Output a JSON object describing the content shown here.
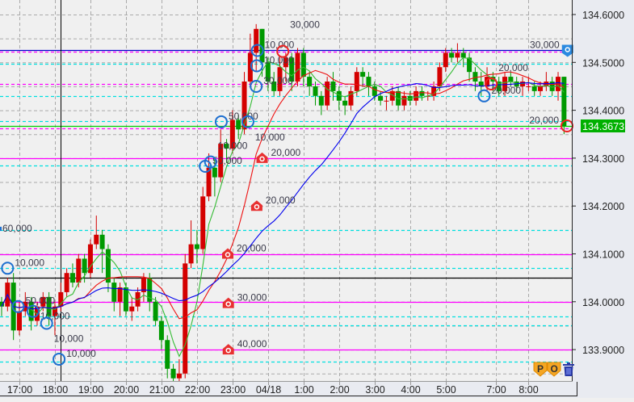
{
  "chart_data": {
    "type": "candlestick",
    "bar_interval": "10 min",
    "colors": {
      "up": "#d40000",
      "down": "#009900",
      "ma_short": "#33bb33",
      "ma_mid": "#ee1111",
      "ma_long": "#0000ee",
      "background": "#f0f0f0",
      "axis_bg": "#e9ebf1"
    },
    "ylim": [
      133.83,
      134.63
    ],
    "y_ticks": [
      "134.6000",
      "134.5000",
      "134.4000",
      "134.3000",
      "134.2000",
      "134.1000",
      "134.0000",
      "133.9000"
    ],
    "y_tick_values": [
      134.6,
      134.5,
      134.4,
      134.3,
      134.2,
      134.1,
      134.0,
      133.9
    ],
    "x_ticks": [
      {
        "label": "17:00",
        "bar": 3
      },
      {
        "label": "18:00",
        "bar": 9
      },
      {
        "label": "19:00",
        "bar": 15
      },
      {
        "label": "20:00",
        "bar": 21
      },
      {
        "label": "21:00",
        "bar": 27
      },
      {
        "label": "22:00",
        "bar": 33
      },
      {
        "label": "23:00",
        "bar": 39
      },
      {
        "label": "04/18",
        "bar": 45
      },
      {
        "label": "1:00",
        "bar": 51
      },
      {
        "label": "2:00",
        "bar": 57
      },
      {
        "label": "3:00",
        "bar": 63
      },
      {
        "label": "4:00",
        "bar": 69
      },
      {
        "label": "5:00",
        "bar": 75
      },
      {
        "label": "7:00",
        "bar": 83.5
      },
      {
        "label": "8:00",
        "bar": 89
      }
    ],
    "current_price": "134.3673",
    "current_price_value": 134.3673,
    "candles": [
      [
        134.0,
        134.01,
        133.97,
        133.99
      ],
      [
        133.99,
        134.05,
        133.98,
        134.04
      ],
      [
        134.04,
        134.06,
        133.92,
        133.94
      ],
      [
        133.94,
        134.0,
        133.93,
        133.98
      ],
      [
        133.98,
        134.02,
        133.97,
        134.0
      ],
      [
        134.0,
        134.01,
        133.94,
        133.96
      ],
      [
        133.96,
        134.0,
        133.95,
        133.99
      ],
      [
        133.99,
        134.02,
        133.98,
        134.01
      ],
      [
        134.01,
        134.02,
        133.95,
        133.97
      ],
      [
        133.97,
        134.0,
        133.93,
        133.99
      ],
      [
        133.99,
        134.04,
        133.98,
        134.02
      ],
      [
        134.02,
        134.07,
        134.01,
        134.06
      ],
      [
        134.06,
        134.08,
        134.03,
        134.04
      ],
      [
        134.04,
        134.1,
        134.03,
        134.09
      ],
      [
        134.09,
        134.1,
        134.04,
        134.06
      ],
      [
        134.06,
        134.13,
        134.05,
        134.12
      ],
      [
        134.12,
        134.18,
        134.11,
        134.14
      ],
      [
        134.14,
        134.15,
        134.06,
        134.11
      ],
      [
        134.11,
        134.12,
        134.02,
        134.04
      ],
      [
        134.04,
        134.05,
        133.98,
        134.0
      ],
      [
        134.0,
        134.04,
        133.97,
        134.03
      ],
      [
        134.03,
        134.04,
        133.97,
        133.98
      ],
      [
        133.98,
        134.01,
        133.96,
        133.99
      ],
      [
        133.99,
        134.03,
        133.98,
        134.02
      ],
      [
        134.02,
        134.06,
        134.0,
        134.05
      ],
      [
        134.05,
        134.06,
        133.98,
        134.0
      ],
      [
        134.0,
        134.01,
        133.95,
        133.96
      ],
      [
        133.96,
        133.97,
        133.9,
        133.92
      ],
      [
        133.92,
        133.93,
        133.84,
        133.86
      ],
      [
        133.86,
        133.87,
        133.83,
        133.84
      ],
      [
        133.84,
        133.88,
        133.83,
        133.85
      ],
      [
        133.85,
        134.1,
        133.84,
        134.08
      ],
      [
        134.08,
        134.17,
        134.07,
        134.12
      ],
      [
        134.12,
        134.15,
        134.08,
        134.11
      ],
      [
        134.11,
        134.24,
        134.1,
        134.22
      ],
      [
        134.22,
        134.31,
        134.21,
        134.28
      ],
      [
        134.28,
        134.3,
        134.22,
        134.26
      ],
      [
        134.26,
        134.36,
        134.25,
        134.33
      ],
      [
        134.33,
        134.34,
        134.29,
        134.32
      ],
      [
        134.32,
        134.4,
        134.31,
        134.38
      ],
      [
        134.38,
        134.39,
        134.34,
        134.36
      ],
      [
        134.36,
        134.48,
        134.35,
        134.46
      ],
      [
        134.46,
        134.56,
        134.45,
        134.52
      ],
      [
        134.52,
        134.58,
        134.48,
        134.57
      ],
      [
        134.57,
        134.57,
        134.47,
        134.5
      ],
      [
        134.5,
        134.51,
        134.44,
        134.46
      ],
      [
        134.46,
        134.48,
        134.43,
        134.44
      ],
      [
        134.44,
        134.51,
        134.43,
        134.49
      ],
      [
        134.49,
        134.52,
        134.46,
        134.51
      ],
      [
        134.51,
        134.52,
        134.44,
        134.46
      ],
      [
        134.46,
        134.53,
        134.45,
        134.52
      ],
      [
        134.52,
        134.53,
        134.45,
        134.47
      ],
      [
        134.47,
        134.48,
        134.43,
        134.45
      ],
      [
        134.45,
        134.46,
        134.41,
        134.43
      ],
      [
        134.43,
        134.44,
        134.39,
        134.41
      ],
      [
        134.41,
        134.47,
        134.4,
        134.46
      ],
      [
        134.46,
        134.48,
        134.42,
        134.44
      ],
      [
        134.44,
        134.45,
        134.4,
        134.42
      ],
      [
        134.42,
        134.43,
        134.39,
        134.41
      ],
      [
        134.41,
        134.45,
        134.4,
        134.44
      ],
      [
        134.44,
        134.49,
        134.43,
        134.48
      ],
      [
        134.48,
        134.49,
        134.45,
        134.47
      ],
      [
        134.47,
        134.48,
        134.43,
        134.45
      ],
      [
        134.45,
        134.46,
        134.42,
        134.43
      ],
      [
        134.43,
        134.44,
        134.41,
        134.42
      ],
      [
        134.42,
        134.43,
        134.4,
        134.42
      ],
      [
        134.42,
        134.45,
        134.41,
        134.44
      ],
      [
        134.44,
        134.45,
        134.4,
        134.41
      ],
      [
        134.41,
        134.44,
        134.4,
        134.43
      ],
      [
        134.43,
        134.44,
        134.41,
        134.42
      ],
      [
        134.42,
        134.45,
        134.41,
        134.44
      ],
      [
        134.44,
        134.45,
        134.42,
        134.43
      ],
      [
        134.43,
        134.44,
        134.42,
        134.43
      ],
      [
        134.43,
        134.46,
        134.42,
        134.45
      ],
      [
        134.45,
        134.5,
        134.44,
        134.49
      ],
      [
        134.49,
        134.53,
        134.48,
        134.52
      ],
      [
        134.52,
        134.53,
        134.5,
        134.51
      ],
      [
        134.51,
        134.54,
        134.5,
        134.52
      ],
      [
        134.52,
        134.53,
        134.49,
        134.51
      ],
      [
        134.51,
        134.52,
        134.46,
        134.48
      ],
      [
        134.48,
        134.49,
        134.44,
        134.46
      ],
      [
        134.46,
        134.48,
        134.43,
        134.45
      ],
      [
        134.45,
        134.49,
        134.44,
        134.47
      ],
      [
        134.47,
        134.48,
        134.44,
        134.46
      ],
      [
        134.46,
        134.47,
        134.43,
        134.44
      ],
      [
        134.44,
        134.48,
        134.43,
        134.47
      ],
      [
        134.47,
        134.48,
        134.45,
        134.46
      ],
      [
        134.46,
        134.47,
        134.44,
        134.45
      ],
      [
        134.45,
        134.47,
        134.43,
        134.46
      ],
      [
        134.45,
        134.47,
        134.44,
        134.45
      ],
      [
        134.45,
        134.46,
        134.43,
        134.44
      ],
      [
        134.44,
        134.46,
        134.43,
        134.45
      ],
      [
        134.45,
        134.48,
        134.44,
        134.46
      ],
      [
        134.46,
        134.47,
        134.43,
        134.44
      ],
      [
        134.44,
        134.48,
        134.42,
        134.47
      ],
      [
        134.47,
        134.47,
        134.35,
        134.3673
      ]
    ],
    "price_lines": [
      {
        "price": 134.525,
        "color": "#0000cc",
        "style": "solid"
      },
      {
        "price": 134.523,
        "color": "#ff00ff",
        "style": "dashed"
      },
      {
        "price": 134.497,
        "color": "#00e0e0",
        "style": "dashed"
      },
      {
        "price": 134.455,
        "color": "#ff00ff",
        "style": "dashed"
      },
      {
        "price": 134.43,
        "color": "#00e0e0",
        "style": "dashed"
      },
      {
        "price": 134.377,
        "color": "#00e0e0",
        "style": "dashed"
      },
      {
        "price": 134.3673,
        "color": "#00cc00",
        "style": "solid"
      },
      {
        "price": 134.362,
        "color": "#ff00ff",
        "style": "dashed"
      },
      {
        "price": 134.3,
        "color": "#ff00ff",
        "style": "solid"
      },
      {
        "price": 134.285,
        "color": "#00e0e0",
        "style": "dashed"
      },
      {
        "price": 134.15,
        "color": "#00e0e0",
        "style": "dashed"
      },
      {
        "price": 134.1,
        "color": "#ff00ff",
        "style": "solid"
      },
      {
        "price": 134.07,
        "color": "#00e0e0",
        "style": "dashed"
      },
      {
        "price": 134.05,
        "color": "#000000",
        "style": "solid"
      },
      {
        "price": 133.97,
        "color": "#00e0e0",
        "style": "dashed"
      },
      {
        "price": 134.0,
        "color": "#ff00ff",
        "style": "solid"
      },
      {
        "price": 133.95,
        "color": "#00e0e0",
        "style": "dashed"
      },
      {
        "price": 133.9,
        "color": "#ff00ff",
        "style": "solid"
      },
      {
        "price": 133.875,
        "color": "#00e0e0",
        "style": "dashed"
      }
    ],
    "crosshair_bar": 10,
    "markers": [
      {
        "type": "blue-circle",
        "bar": 1,
        "price": 134.07,
        "label": "10,000"
      },
      {
        "type": "blue-circle",
        "bar": 2.8,
        "price": 133.99,
        "label": "50,000"
      },
      {
        "type": "blue-circle",
        "bar": 5.3,
        "price": 133.98,
        "label": "10,000"
      },
      {
        "type": "blue-circle",
        "bar": 7.6,
        "price": 133.955,
        "label": "10,000"
      },
      {
        "type": "blue-circle",
        "bar": 9.7,
        "price": 133.88,
        "label": "10,000"
      },
      {
        "type": "blue-circle",
        "bar": 34.4,
        "price": 134.283,
        "label": "50,000"
      },
      {
        "type": "blue-circle",
        "bar": 35.3,
        "price": 134.292,
        "label": "10,000"
      },
      {
        "type": "blue-circle",
        "bar": 37.1,
        "price": 134.376,
        "label": "50,000"
      },
      {
        "type": "blue-circle",
        "bar": 41.6,
        "price": 134.376,
        "label": "10,000"
      },
      {
        "type": "blue-circle",
        "bar": 43,
        "price": 134.45,
        "label": "30,000"
      },
      {
        "type": "blue-circle",
        "bar": 43.1,
        "price": 134.493,
        "label": "10,000"
      },
      {
        "type": "blue-circle",
        "bar": 43.2,
        "price": 134.525,
        "label": "10,000"
      },
      {
        "type": "blue-circle",
        "bar": 81.5,
        "price": 134.43,
        "label": "20,000"
      },
      {
        "type": "red-circle",
        "bar": 47.5,
        "price": 134.523,
        "label": "30,000"
      },
      {
        "type": "red-circle",
        "bar": 82.7,
        "price": 134.455,
        "label": "20,000"
      },
      {
        "type": "red-circle",
        "bar": 95.5,
        "price": 134.3673,
        "label": "20,000"
      },
      {
        "type": "red-house",
        "bar": 44,
        "price": 134.3,
        "label": "20,000"
      },
      {
        "type": "red-house",
        "bar": 43.1,
        "price": 134.2,
        "label": "20,000"
      },
      {
        "type": "red-house",
        "bar": 38.2,
        "price": 134.1,
        "label": "20,000"
      },
      {
        "type": "red-house",
        "bar": 38.3,
        "price": 133.997,
        "label": "30,000"
      },
      {
        "type": "red-house",
        "bar": 38.3,
        "price": 133.9,
        "label": "40,000"
      },
      {
        "type": "blue-pin",
        "bar": 95.6,
        "price": 134.525,
        "label": "30,000"
      },
      {
        "type": "edge-label",
        "bar": 0,
        "price": 134.155,
        "label": "60,000"
      }
    ]
  },
  "toolbar": {
    "buttons": [
      {
        "label": "P",
        "name": "position-toggle"
      },
      {
        "label": "O",
        "name": "order-toggle"
      },
      {
        "label": "",
        "name": "delete-trash"
      }
    ]
  }
}
